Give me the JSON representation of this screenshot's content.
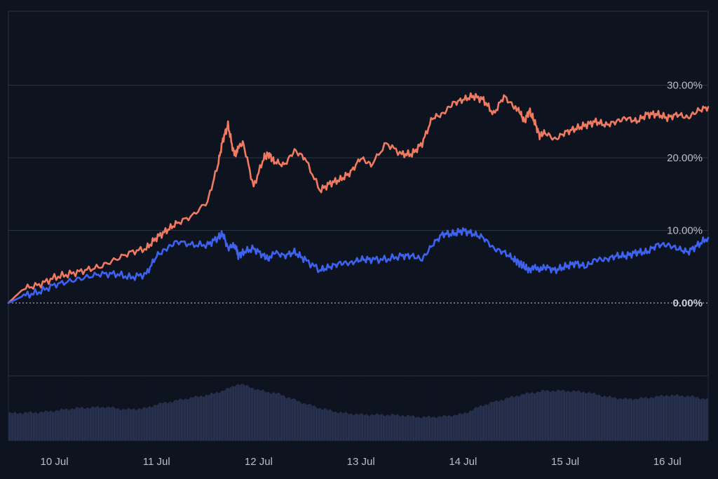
{
  "chart_data": {
    "type": "line",
    "title": "",
    "xlabel": "",
    "ylabel": "",
    "y_unit": "%",
    "ylim": [
      -10,
      40
    ],
    "y_ticks": [
      0,
      10,
      20,
      30
    ],
    "y_tick_labels": [
      "0.00%",
      "10.00%",
      "20.00%",
      "30.00%"
    ],
    "x_range_days": [
      9.55,
      16.4
    ],
    "x_ticks": [
      10,
      11,
      12,
      13,
      14,
      15,
      16
    ],
    "x_tick_labels": [
      "10 Jul",
      "11 Jul",
      "12 Jul",
      "13 Jul",
      "14 Jul",
      "15 Jul",
      "16 Jul"
    ],
    "grid": true,
    "colors": {
      "background": "#0e1320",
      "grid": "#2a3140",
      "series_orange": "#f07a60",
      "series_blue": "#3d62f0",
      "volume": "#27304d"
    },
    "series": [
      {
        "color": "#f07a60",
        "x": [
          9.55,
          9.7,
          9.85,
          10.0,
          10.15,
          10.3,
          10.45,
          10.6,
          10.75,
          10.9,
          11.0,
          11.1,
          11.2,
          11.35,
          11.5,
          11.6,
          11.65,
          11.7,
          11.75,
          11.78,
          11.8,
          11.85,
          11.95,
          12.05,
          12.1,
          12.15,
          12.25,
          12.35,
          12.45,
          12.6,
          12.7,
          12.8,
          12.9,
          13.0,
          13.1,
          13.25,
          13.4,
          13.5,
          13.6,
          13.7,
          13.8,
          13.9,
          14.0,
          14.1,
          14.2,
          14.3,
          14.4,
          14.5,
          14.55,
          14.6,
          14.65,
          14.7,
          14.75,
          14.8,
          14.9,
          15.0,
          15.1,
          15.2,
          15.3,
          15.4,
          15.5,
          15.6,
          15.7,
          15.8,
          15.9,
          16.0,
          16.1,
          16.2,
          16.3,
          16.4
        ],
        "y": [
          0,
          2.0,
          2.5,
          3.5,
          4.0,
          4.5,
          5.0,
          6.0,
          7.0,
          7.5,
          9.0,
          10.0,
          11.0,
          12.0,
          14.0,
          19.0,
          22.5,
          24.5,
          21.0,
          20.5,
          21.5,
          22.0,
          16.0,
          20.0,
          20.5,
          19.5,
          19.0,
          21.0,
          20.0,
          15.5,
          16.5,
          17.0,
          18.0,
          20.0,
          19.0,
          22.0,
          20.5,
          20.5,
          22.0,
          25.5,
          26.0,
          27.5,
          28.0,
          28.5,
          28.0,
          26.0,
          28.5,
          27.0,
          26.5,
          25.0,
          26.5,
          25.0,
          23.0,
          23.5,
          22.5,
          23.5,
          24.0,
          24.5,
          25.0,
          24.5,
          25.0,
          25.5,
          25.0,
          26.0,
          26.0,
          25.5,
          26.0,
          25.5,
          26.5,
          27.0
        ]
      },
      {
        "color": "#3d62f0",
        "x": [
          9.55,
          9.7,
          9.85,
          10.0,
          10.15,
          10.3,
          10.45,
          10.6,
          10.75,
          10.9,
          11.0,
          11.1,
          11.2,
          11.35,
          11.5,
          11.6,
          11.65,
          11.7,
          11.75,
          11.78,
          11.8,
          11.85,
          11.95,
          12.05,
          12.1,
          12.15,
          12.25,
          12.35,
          12.45,
          12.6,
          12.7,
          12.8,
          12.9,
          13.0,
          13.1,
          13.25,
          13.4,
          13.5,
          13.6,
          13.7,
          13.8,
          13.9,
          14.0,
          14.1,
          14.2,
          14.3,
          14.4,
          14.5,
          14.55,
          14.6,
          14.65,
          14.7,
          14.75,
          14.8,
          14.9,
          15.0,
          15.1,
          15.2,
          15.3,
          15.4,
          15.5,
          15.6,
          15.7,
          15.8,
          15.9,
          16.0,
          16.1,
          16.2,
          16.3,
          16.4
        ],
        "y": [
          0,
          1.0,
          1.5,
          2.5,
          3.0,
          3.5,
          4.0,
          4.0,
          3.5,
          4.0,
          6.5,
          7.5,
          8.5,
          8.0,
          8.0,
          9.0,
          9.5,
          7.5,
          8.0,
          7.5,
          6.5,
          7.0,
          7.5,
          6.5,
          6.0,
          7.0,
          6.5,
          7.0,
          6.0,
          4.5,
          5.0,
          5.5,
          5.5,
          6.0,
          6.0,
          6.0,
          6.5,
          6.5,
          6.0,
          8.0,
          9.5,
          9.5,
          10.0,
          9.5,
          9.0,
          7.5,
          7.0,
          6.0,
          5.5,
          5.0,
          4.5,
          5.0,
          4.5,
          5.0,
          4.5,
          5.0,
          5.5,
          5.0,
          6.0,
          6.0,
          6.5,
          6.5,
          7.0,
          7.0,
          8.0,
          8.0,
          7.5,
          7.0,
          8.0,
          9.0
        ]
      }
    ],
    "volume": {
      "color": "#27304d",
      "x": [
        9.55,
        9.7,
        9.9,
        10.2,
        10.5,
        10.7,
        10.9,
        11.0,
        11.2,
        11.4,
        11.55,
        11.7,
        11.8,
        11.9,
        12.0,
        12.2,
        12.4,
        12.6,
        12.8,
        13.0,
        13.2,
        13.4,
        13.6,
        13.8,
        14.0,
        14.2,
        14.4,
        14.6,
        14.8,
        15.0,
        15.2,
        15.4,
        15.6,
        15.8,
        16.0,
        16.2,
        16.4
      ],
      "y": [
        0.42,
        0.43,
        0.44,
        0.5,
        0.52,
        0.48,
        0.5,
        0.56,
        0.62,
        0.68,
        0.72,
        0.8,
        0.88,
        0.84,
        0.78,
        0.72,
        0.6,
        0.5,
        0.43,
        0.4,
        0.4,
        0.39,
        0.36,
        0.37,
        0.41,
        0.55,
        0.64,
        0.72,
        0.77,
        0.77,
        0.75,
        0.68,
        0.64,
        0.66,
        0.7,
        0.69,
        0.64
      ]
    }
  }
}
